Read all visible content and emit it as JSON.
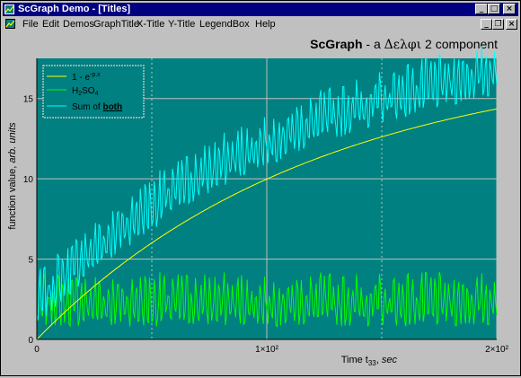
{
  "window": {
    "title": "ScGraph Demo - [Titles]",
    "title_controls": [
      "_",
      "□",
      "×"
    ],
    "mdi_controls": [
      "_",
      "❐",
      "×"
    ]
  },
  "menu": {
    "items": [
      "File",
      "Edit",
      "Demos",
      "GraphTitle",
      "X-Title",
      "Y-Title",
      "LegendBox",
      "Help"
    ]
  },
  "graph": {
    "title_bold": "ScGraph",
    "title_rest": " - a ",
    "title_greek": "Δελφι",
    "title_tail": " 2 component",
    "colors": {
      "plot_bg": "#008080",
      "grid": "#c0c0c0",
      "series1": "#ffff00",
      "series2": "#00ff00",
      "series3": "#00ffff"
    }
  },
  "chart_data": {
    "type": "line",
    "xlabel": "Time t33, sec",
    "ylabel": "function value, arb. units",
    "xlim": [
      0,
      200
    ],
    "ylim": [
      0,
      17.5
    ],
    "x_ticks": [
      {
        "value": 0,
        "label": "0"
      },
      {
        "value": 100,
        "label": "1×10²"
      },
      {
        "value": 200,
        "label": "2×10²"
      }
    ],
    "y_ticks": [
      0,
      5,
      10,
      15
    ],
    "minor_dotted_x": [
      50,
      150
    ],
    "grid": true,
    "legend_position": "top-left",
    "series": [
      {
        "name": "1 - e^-p.x",
        "color": "#ffff00",
        "formula": "17.75*(1-exp(-x/121))",
        "x": [
          0,
          10,
          20,
          30,
          40,
          50,
          60,
          70,
          80,
          90,
          100,
          110,
          120,
          130,
          140,
          150,
          160,
          170,
          180,
          190,
          200
        ],
        "values": [
          0,
          1.4,
          2.7,
          3.9,
          4.9,
          5.9,
          6.8,
          7.6,
          8.4,
          9.1,
          9.8,
          10.4,
          10.9,
          11.4,
          11.9,
          12.3,
          12.7,
          13.1,
          13.4,
          13.8,
          14.1
        ]
      },
      {
        "name": "H2SO4",
        "color": "#00ff00",
        "description": "noise oscillating between about 0.2 and 4.2",
        "x": [
          0,
          20,
          40,
          60,
          80,
          100,
          120,
          140,
          160,
          180,
          200
        ],
        "values": [
          1.2,
          2.5,
          1.0,
          3.1,
          1.8,
          2.0,
          3.0,
          1.4,
          2.6,
          1.7,
          1.5
        ]
      },
      {
        "name": "Sum of both",
        "color": "#00ffff",
        "description": "sum of the two series above",
        "x": [
          0,
          20,
          40,
          60,
          80,
          100,
          120,
          140,
          160,
          180,
          200
        ],
        "values": [
          1.2,
          5.2,
          5.9,
          9.9,
          10.2,
          11.8,
          13.9,
          13.3,
          15.3,
          15.1,
          15.6
        ]
      }
    ]
  }
}
